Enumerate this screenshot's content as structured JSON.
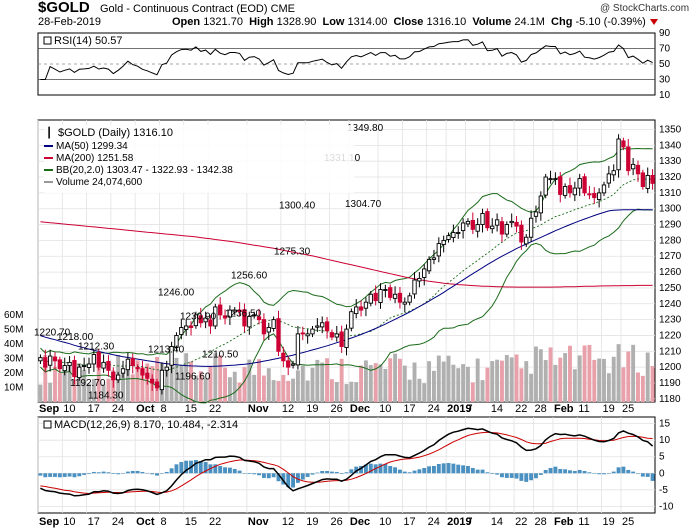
{
  "header": {
    "ticker": "$GOLD",
    "description": "Gold - Continuous Contract (EOD)",
    "exchange": "CME",
    "brand": "@ StockCharts.com",
    "date": "28-Feb-2019",
    "open_label": "Open",
    "open": "1321.70",
    "high_label": "High",
    "high": "1328.90",
    "low_label": "Low",
    "low": "1314.00",
    "close_label": "Close",
    "close": "1316.10",
    "volume_label": "Volume",
    "volume": "24.1M",
    "chg_label": "Chg",
    "chg": "-5.10 (-0.39%)"
  },
  "colors": {
    "up": "#000000",
    "down": "#cc0033",
    "ma50": "#000080",
    "ma200": "#cc0033",
    "bb": "#1a6b1a",
    "volume_up": "#b0b0b0",
    "volume_down": "#e8a0aa",
    "macd": "#000000",
    "signal": "#cc0000",
    "histogram": "#4a90c0",
    "rsi": "#000000"
  },
  "rsi_panel": {
    "label": "RSI(14) 50.57",
    "ticks": [
      "90",
      "70",
      "50",
      "30",
      "10"
    ]
  },
  "price_panel": {
    "title": "$GOLD (Daily) 1316.10",
    "legend": [
      {
        "text": "MA(50) 1299.34",
        "color": "#000080"
      },
      {
        "text": "MA(200) 1251.58",
        "color": "#cc0033"
      },
      {
        "text": "BB(20,2.0) 1303.47 - 1322.93 - 1342.38",
        "color": "#1a6b1a"
      },
      {
        "text": "Volume 24,074,600",
        "color": "#999999"
      }
    ],
    "price_ticks": [
      "1350",
      "1340",
      "1330",
      "1320",
      "1310",
      "1300",
      "1290",
      "1280",
      "1270",
      "1260",
      "1250",
      "1240",
      "1230",
      "1220",
      "1210",
      "1200",
      "1190",
      "1180"
    ],
    "volume_ticks": [
      "60M",
      "50M",
      "40M",
      "30M",
      "20M",
      "10M"
    ],
    "annotations": [
      "1220.70",
      "1218.00",
      "1212.30",
      "1192.70",
      "1184.30",
      "1246.00",
      "1213.40",
      "1230.90",
      "1196.60",
      "1210.50",
      "1256.60",
      "1236.50",
      "1300.40",
      "1275.30",
      "1331.10",
      "1349.80",
      "1304.70"
    ]
  },
  "macd_panel": {
    "label": "MACD(12,26,9) 8.170, 10.484, -2.314",
    "ticks": [
      "15",
      "10",
      "5",
      "0",
      "-5",
      "-10"
    ]
  },
  "x_axis": {
    "labels": [
      "Sep",
      "10",
      "17",
      "24",
      "Oct",
      "8",
      "15",
      "22",
      "Nov",
      "12",
      "19",
      "26",
      "Dec",
      "10",
      "17",
      "24",
      "2019",
      "7",
      "14",
      "22",
      "28",
      "Feb",
      "11",
      "19",
      "25"
    ]
  },
  "chart_data": {
    "type": "candlestick",
    "ylim": [
      1178,
      1356
    ],
    "yticks": [
      1180,
      1190,
      1200,
      1210,
      1220,
      1230,
      1240,
      1250,
      1260,
      1270,
      1280,
      1290,
      1300,
      1310,
      1320,
      1330,
      1340,
      1350
    ],
    "volume_ylim": [
      0,
      60
    ],
    "x_labels": [
      {
        "label": "Sep",
        "i": 0
      },
      {
        "label": "10",
        "i": 5
      },
      {
        "label": "17",
        "i": 10
      },
      {
        "label": "24",
        "i": 15
      },
      {
        "label": "Oct",
        "i": 20
      },
      {
        "label": "8",
        "i": 25
      },
      {
        "label": "15",
        "i": 30
      },
      {
        "label": "22",
        "i": 35
      },
      {
        "label": "Nov",
        "i": 43
      },
      {
        "label": "12",
        "i": 50
      },
      {
        "label": "19",
        "i": 55
      },
      {
        "label": "26",
        "i": 60
      },
      {
        "label": "Dec",
        "i": 64
      },
      {
        "label": "10",
        "i": 70
      },
      {
        "label": "17",
        "i": 75
      },
      {
        "label": "24",
        "i": 80
      },
      {
        "label": "2019",
        "i": 84
      },
      {
        "label": "7",
        "i": 88
      },
      {
        "label": "14",
        "i": 93
      },
      {
        "label": "22",
        "i": 98
      },
      {
        "label": "28",
        "i": 102
      },
      {
        "label": "Feb",
        "i": 106
      },
      {
        "label": "11",
        "i": 111
      },
      {
        "label": "19",
        "i": 116
      },
      {
        "label": "25",
        "i": 120
      }
    ],
    "close": [
      1206,
      1200,
      1207,
      1204,
      1199,
      1201,
      1203,
      1194,
      1200,
      1201,
      1202,
      1208,
      1200,
      1203,
      1198,
      1192,
      1195,
      1199,
      1205,
      1201,
      1199,
      1195,
      1193,
      1190,
      1187,
      1198,
      1200,
      1213,
      1220,
      1225,
      1226,
      1225,
      1233,
      1228,
      1231,
      1226,
      1238,
      1233,
      1231,
      1236,
      1236,
      1235,
      1226,
      1232,
      1233,
      1230,
      1221,
      1225,
      1230,
      1210,
      1204,
      1200,
      1202,
      1221,
      1221,
      1221,
      1224,
      1226,
      1228,
      1223,
      1219,
      1221,
      1213,
      1224,
      1235,
      1238,
      1236,
      1241,
      1246,
      1242,
      1249,
      1249,
      1244,
      1246,
      1241,
      1241,
      1245,
      1255,
      1256,
      1262,
      1268,
      1269,
      1278,
      1280,
      1283,
      1285,
      1285,
      1291,
      1292,
      1287,
      1290,
      1297,
      1288,
      1289,
      1293,
      1284,
      1290,
      1292,
      1289,
      1279,
      1282,
      1294,
      1298,
      1308,
      1320,
      1319,
      1319,
      1309,
      1314,
      1310,
      1313,
      1319,
      1310,
      1309,
      1307,
      1310,
      1315,
      1322,
      1324,
      1344,
      1339,
      1324,
      1328,
      1322,
      1314,
      1321,
      1316
    ],
    "ma50": [
      1219.9,
      1218.9,
      1218.1,
      1217.3,
      1216.4,
      1215.6,
      1214.8,
      1213.8,
      1213.0,
      1212.2,
      1211.4,
      1210.7,
      1209.9,
      1209.2,
      1208.5,
      1207.8,
      1207.2,
      1206.6,
      1206.1,
      1205.6,
      1205.1,
      1204.6,
      1204.1,
      1203.6,
      1203.1,
      1202.6,
      1202.1,
      1201.8,
      1201.5,
      1201.2,
      1201.0,
      1200.8,
      1200.7,
      1200.6,
      1200.5,
      1200.5,
      1200.6,
      1200.7,
      1200.9,
      1201.1,
      1201.3,
      1201.6,
      1201.8,
      1202.2,
      1202.7,
      1203.2,
      1203.8,
      1204.4,
      1205.0,
      1205.6,
      1206.2,
      1206.9,
      1207.6,
      1208.4,
      1209.2,
      1210.0,
      1210.9,
      1211.7,
      1212.6,
      1213.5,
      1214.4,
      1215.4,
      1216.3,
      1217.3,
      1218.4,
      1219.5,
      1220.6,
      1221.8,
      1223.1,
      1224.4,
      1225.8,
      1227.2,
      1228.7,
      1230.2,
      1231.7,
      1233.2,
      1234.8,
      1236.5,
      1238.2,
      1239.9,
      1241.7,
      1243.5,
      1245.3,
      1247.2,
      1249.2,
      1251.1,
      1253.1,
      1255.1,
      1257.1,
      1259.0,
      1260.9,
      1262.8,
      1264.7,
      1266.5,
      1268.3,
      1270.0,
      1271.6,
      1273.2,
      1274.8,
      1276.3,
      1277.7,
      1279.1,
      1280.5,
      1281.9,
      1283.3,
      1284.7,
      1286.1,
      1287.4,
      1288.7,
      1290.0,
      1291.2,
      1292.4,
      1293.5,
      1294.6,
      1295.7,
      1296.7,
      1297.7,
      1298.6,
      1299.0,
      1299.2,
      1299.3,
      1299.3,
      1299.3,
      1299.3,
      1299.3,
      1299.3,
      1299.3
    ],
    "ma200": [
      1291.8,
      1291.5,
      1291.2,
      1290.9,
      1290.6,
      1290.3,
      1290.0,
      1289.7,
      1289.4,
      1289.1,
      1288.8,
      1288.5,
      1288.2,
      1287.9,
      1287.6,
      1287.3,
      1287.0,
      1286.7,
      1286.4,
      1286.1,
      1285.8,
      1285.5,
      1285.2,
      1284.9,
      1284.6,
      1284.3,
      1284.0,
      1283.7,
      1283.4,
      1283.1,
      1282.8,
      1282.5,
      1282.2,
      1281.8,
      1281.4,
      1281.0,
      1280.6,
      1280.2,
      1279.8,
      1279.4,
      1279.0,
      1278.5,
      1278.0,
      1277.5,
      1277.0,
      1276.5,
      1276.0,
      1275.5,
      1275.0,
      1274.4,
      1273.8,
      1273.2,
      1272.6,
      1272.0,
      1271.4,
      1270.8,
      1270.2,
      1269.5,
      1268.8,
      1268.1,
      1267.4,
      1266.7,
      1266.0,
      1265.3,
      1264.6,
      1263.9,
      1263.2,
      1262.5,
      1261.8,
      1261.1,
      1260.4,
      1259.7,
      1259.0,
      1258.3,
      1257.6,
      1256.9,
      1256.3,
      1255.7,
      1255.2,
      1254.7,
      1254.2,
      1253.8,
      1253.4,
      1253.0,
      1252.7,
      1252.4,
      1252.1,
      1251.9,
      1251.7,
      1251.5,
      1251.3,
      1251.1,
      1251.0,
      1250.9,
      1250.8,
      1250.7,
      1250.6,
      1250.6,
      1250.5,
      1250.5,
      1250.5,
      1250.5,
      1250.5,
      1250.5,
      1250.5,
      1250.5,
      1250.6,
      1250.6,
      1250.7,
      1250.7,
      1250.8,
      1250.9,
      1251.0,
      1251.0,
      1251.1,
      1251.2,
      1251.3,
      1251.3,
      1251.4,
      1251.4,
      1251.5,
      1251.5,
      1251.5,
      1251.6,
      1251.6,
      1251.6,
      1251.6
    ],
    "macd": [
      -4.5,
      -5.2,
      -5.4,
      -5.6,
      -6.0,
      -6.2,
      -6.3,
      -6.8,
      -6.7,
      -6.5,
      -6.3,
      -5.6,
      -5.6,
      -5.3,
      -5.4,
      -6.0,
      -6.1,
      -5.9,
      -5.2,
      -4.9,
      -4.8,
      -5.0,
      -5.3,
      -5.8,
      -6.4,
      -5.9,
      -5.3,
      -3.8,
      -2.0,
      -0.4,
      0.9,
      1.8,
      3.0,
      3.5,
      4.1,
      4.1,
      4.8,
      4.9,
      4.9,
      5.2,
      5.1,
      4.8,
      3.9,
      3.7,
      3.5,
      3.0,
      1.9,
      1.4,
      1.4,
      -0.3,
      -2.2,
      -4.1,
      -5.3,
      -4.7,
      -4.2,
      -3.7,
      -3.1,
      -2.5,
      -1.9,
      -1.7,
      -1.8,
      -1.8,
      -2.4,
      -1.8,
      -0.6,
      0.7,
      1.5,
      2.5,
      3.6,
      4.1,
      5.0,
      5.6,
      5.6,
      5.6,
      5.2,
      4.8,
      4.7,
      5.4,
      6.1,
      6.9,
      7.9,
      8.6,
      9.9,
      10.9,
      11.8,
      12.4,
      12.7,
      13.2,
      13.6,
      13.4,
      13.2,
      13.4,
      12.7,
      12.1,
      11.8,
      10.7,
      10.2,
      9.8,
      9.2,
      7.9,
      6.9,
      7.0,
      7.4,
      8.4,
      10.1,
      11.2,
      12.0,
      11.7,
      11.8,
      11.5,
      11.3,
      11.6,
      11.2,
      10.6,
      10.0,
      9.6,
      9.5,
      9.9,
      10.5,
      12.2,
      12.8,
      12.1,
      11.7,
      11.0,
      9.9,
      9.5,
      8.2
    ],
    "signal": [
      -3.8,
      -4.0,
      -4.3,
      -4.5,
      -4.8,
      -5.1,
      -5.3,
      -5.6,
      -5.8,
      -6.0,
      -6.1,
      -6.0,
      -5.9,
      -5.8,
      -5.7,
      -5.8,
      -5.8,
      -5.9,
      -5.7,
      -5.6,
      -5.5,
      -5.4,
      -5.4,
      -5.5,
      -5.7,
      -5.8,
      -5.7,
      -5.3,
      -4.7,
      -3.8,
      -2.9,
      -2.0,
      -1.0,
      -0.1,
      0.7,
      1.4,
      2.1,
      2.7,
      3.1,
      3.5,
      3.8,
      4.0,
      4.0,
      3.9,
      3.8,
      3.6,
      3.3,
      2.9,
      2.6,
      2.1,
      1.2,
      0.1,
      -1.0,
      -1.8,
      -2.3,
      -2.6,
      -2.7,
      -2.7,
      -2.6,
      -2.4,
      -2.3,
      -2.2,
      -2.2,
      -2.1,
      -1.8,
      -1.3,
      -0.7,
      -0.1,
      0.7,
      1.4,
      2.1,
      2.8,
      3.4,
      3.8,
      4.1,
      4.3,
      4.4,
      4.6,
      4.9,
      5.3,
      5.8,
      6.4,
      7.1,
      7.9,
      8.7,
      9.5,
      10.1,
      10.8,
      11.4,
      11.8,
      12.1,
      12.3,
      12.4,
      12.3,
      12.2,
      11.9,
      11.6,
      11.2,
      10.8,
      10.2,
      9.5,
      9.1,
      8.9,
      8.9,
      9.1,
      9.6,
      10.0,
      10.4,
      10.6,
      10.6,
      10.6,
      10.6,
      10.5,
      10.3,
      10.1,
      9.9,
      9.8,
      9.9,
      10.0,
      10.4,
      10.8,
      11.1,
      11.2,
      11.1,
      10.9,
      10.6,
      10.5
    ]
  }
}
